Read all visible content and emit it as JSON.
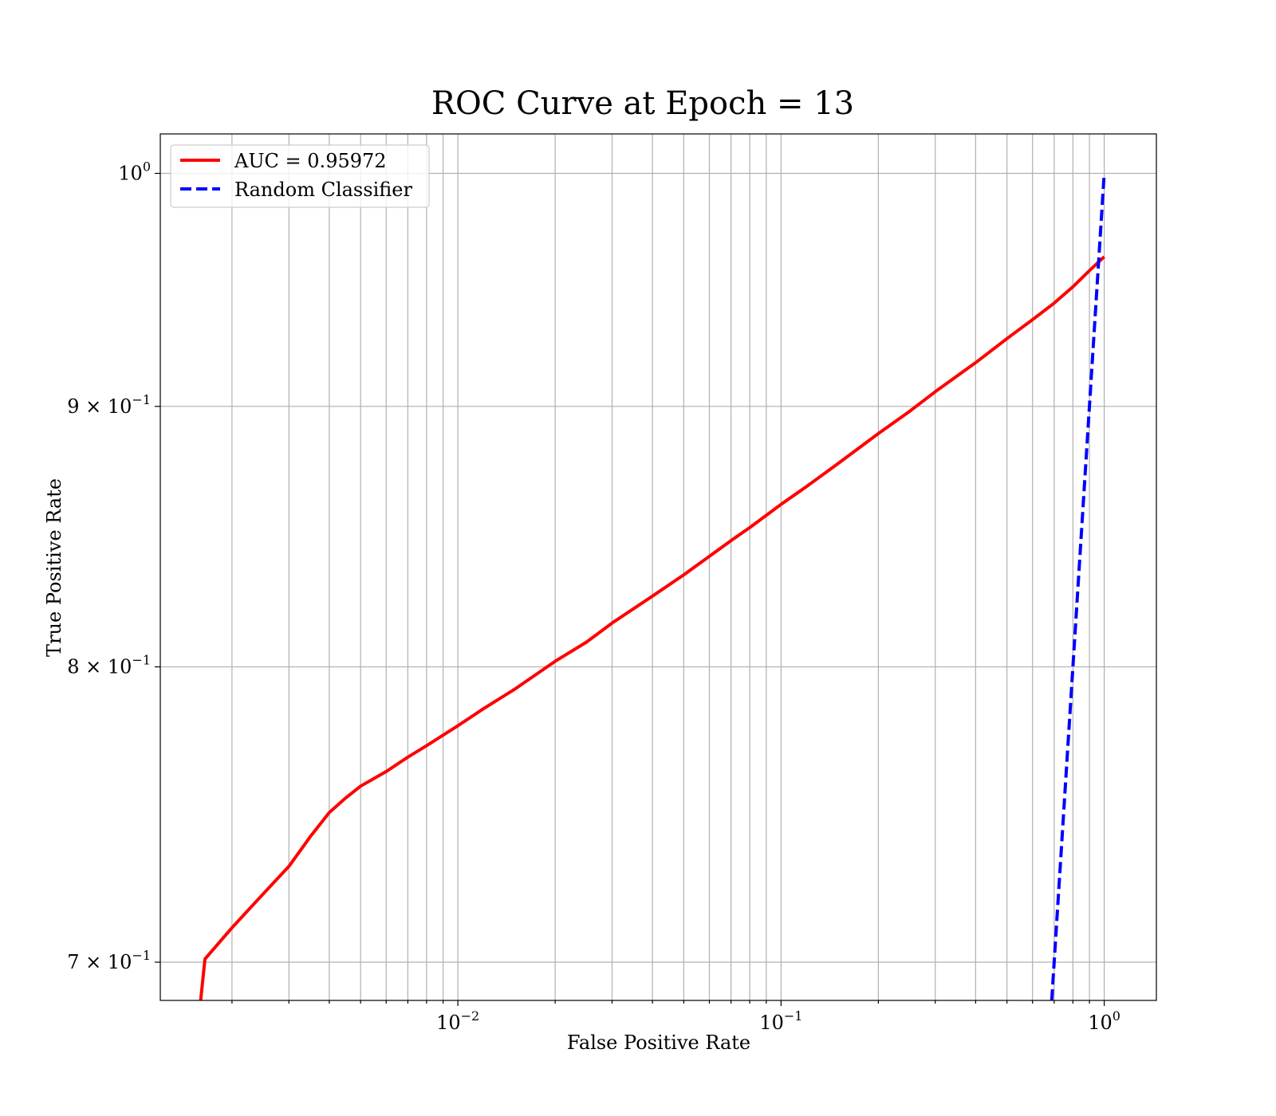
{
  "chart_data": {
    "type": "line",
    "title": "ROC Curve at Epoch = 13",
    "xlabel": "False Positive Rate",
    "ylabel": "True Positive Rate",
    "xscale": "log",
    "yscale": "log",
    "xlim": [
      0.0012,
      1.45
    ],
    "ylim": [
      0.688,
      1.018
    ],
    "grid": true,
    "grid_which": "both",
    "legend_position": "top-left",
    "x_ticks": [
      {
        "base": "10",
        "exp": "−2",
        "value": 0.01
      },
      {
        "base": "10",
        "exp": "−1",
        "value": 0.1
      },
      {
        "base": "10",
        "exp": "0",
        "value": 1
      }
    ],
    "y_ticks": [
      {
        "mant": "7 × 10",
        "exp": "−1",
        "value": 0.7
      },
      {
        "mant": "8 × 10",
        "exp": "−1",
        "value": 0.8
      },
      {
        "mant": "9 × 10",
        "exp": "−1",
        "value": 0.9
      },
      {
        "mant": "10",
        "exp": "0",
        "value": 1.0
      }
    ],
    "series": [
      {
        "name": "AUC = 0.95972",
        "color": "#ff0000",
        "style": "solid",
        "points": [
          [
            0.0016,
            0.688
          ],
          [
            0.00165,
            0.701
          ],
          [
            0.002,
            0.711
          ],
          [
            0.0025,
            0.722
          ],
          [
            0.003,
            0.731
          ],
          [
            0.0035,
            0.741
          ],
          [
            0.004,
            0.749
          ],
          [
            0.0045,
            0.754
          ],
          [
            0.005,
            0.758
          ],
          [
            0.006,
            0.763
          ],
          [
            0.007,
            0.768
          ],
          [
            0.008,
            0.772
          ],
          [
            0.01,
            0.779
          ],
          [
            0.012,
            0.785
          ],
          [
            0.015,
            0.792
          ],
          [
            0.02,
            0.802
          ],
          [
            0.025,
            0.809
          ],
          [
            0.03,
            0.816
          ],
          [
            0.04,
            0.826
          ],
          [
            0.05,
            0.834
          ],
          [
            0.06,
            0.841
          ],
          [
            0.07,
            0.847
          ],
          [
            0.08,
            0.852
          ],
          [
            0.1,
            0.861
          ],
          [
            0.12,
            0.868
          ],
          [
            0.15,
            0.877
          ],
          [
            0.2,
            0.889
          ],
          [
            0.25,
            0.898
          ],
          [
            0.3,
            0.906
          ],
          [
            0.4,
            0.918
          ],
          [
            0.5,
            0.928
          ],
          [
            0.6,
            0.936
          ],
          [
            0.7,
            0.943
          ],
          [
            0.8,
            0.95
          ],
          [
            0.9,
            0.957
          ],
          [
            1.0,
            0.963
          ]
        ]
      },
      {
        "name": "Random Classifier",
        "color": "#0000ff",
        "style": "dashed",
        "points": [
          [
            0.688,
            0.688
          ],
          [
            1.0,
            1.0
          ]
        ]
      }
    ]
  }
}
